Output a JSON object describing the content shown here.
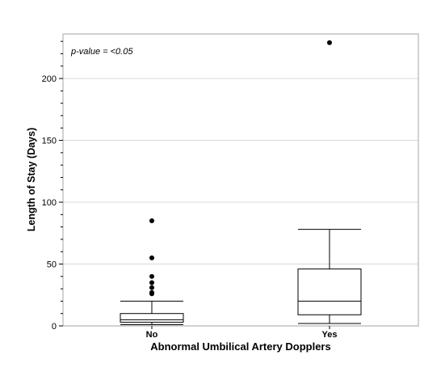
{
  "chart_data": {
    "type": "box",
    "annotation": "p-value = <0.05",
    "xlabel": "Abnormal Umbilical Artery Dopplers",
    "ylabel": "Length of Stay (Days)",
    "ylim": [
      0,
      236
    ],
    "y_ticks": [
      0,
      50,
      100,
      150,
      200
    ],
    "grid": true,
    "categories": [
      "No",
      "Yes"
    ],
    "boxes": [
      {
        "category": "No",
        "whisker_low": 1,
        "q1": 3,
        "median": 5,
        "q3": 10,
        "whisker_high": 20,
        "outliers": [
          26,
          27,
          31,
          35,
          40,
          55,
          85
        ]
      },
      {
        "category": "Yes",
        "whisker_low": 2,
        "q1": 9,
        "median": 20,
        "q3": 46,
        "whisker_high": 78,
        "outliers": [
          229
        ]
      }
    ],
    "colors": {
      "box_stroke": "#000000",
      "grid": "#d9d9d9",
      "frame": "#a6a6a6",
      "outlier": "#000000"
    }
  }
}
